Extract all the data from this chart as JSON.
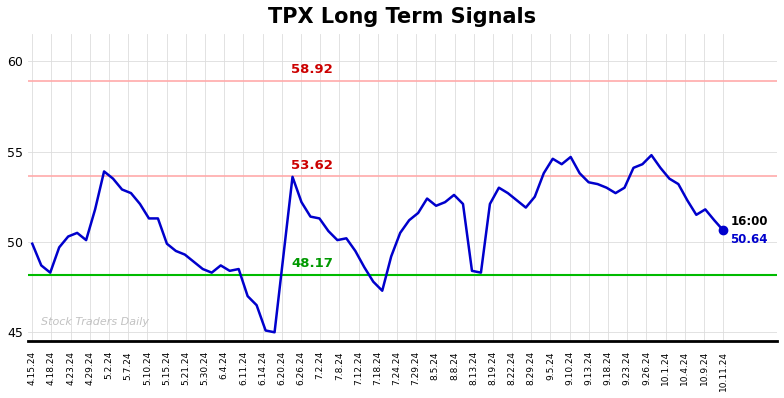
{
  "title": "TPX Long Term Signals",
  "title_fontsize": 15,
  "title_fontweight": "bold",
  "line_color": "#0000cc",
  "line_width": 1.8,
  "marker_color": "#0000cc",
  "hline_red1": 58.92,
  "hline_red2": 53.62,
  "hline_green": 48.17,
  "hline_red_color": "#ffaaaa",
  "hline_green_color": "#00bb00",
  "annotation_58_92": "58.92",
  "annotation_53_62": "53.62",
  "annotation_48_17": "48.17",
  "annotation_color_red": "#cc0000",
  "annotation_color_green": "#009900",
  "end_label_time": "16:00",
  "end_label_value": "50.64",
  "end_label_color_time": "#000000",
  "end_label_color_value": "#0000cc",
  "watermark": "Stock Traders Daily",
  "watermark_color": "#bbbbbb",
  "background_color": "#ffffff",
  "grid_color": "#dddddd",
  "ylim": [
    44.5,
    61.5
  ],
  "yticks": [
    45,
    50,
    55,
    60
  ],
  "x_labels": [
    "4.15.24",
    "4.18.24",
    "4.23.24",
    "4.29.24",
    "5.2.24",
    "5.7.24",
    "5.10.24",
    "5.15.24",
    "5.21.24",
    "5.30.24",
    "6.4.24",
    "6.11.24",
    "6.14.24",
    "6.20.24",
    "6.26.24",
    "7.2.24",
    "7.8.24",
    "7.12.24",
    "7.18.24",
    "7.24.24",
    "7.29.24",
    "8.5.24",
    "8.8.24",
    "8.13.24",
    "8.19.24",
    "8.22.24",
    "8.29.24",
    "9.5.24",
    "9.10.24",
    "9.13.24",
    "9.18.24",
    "9.23.24",
    "9.26.24",
    "10.1.24",
    "10.4.24",
    "10.9.24",
    "10.11.24"
  ],
  "y_values": [
    49.9,
    48.7,
    48.3,
    49.7,
    50.3,
    50.5,
    50.1,
    51.8,
    53.9,
    53.5,
    52.9,
    52.7,
    52.1,
    51.3,
    51.3,
    49.9,
    49.5,
    49.3,
    48.9,
    48.5,
    48.3,
    48.7,
    48.4,
    48.5,
    47.0,
    46.5,
    45.1,
    45.0,
    49.3,
    53.6,
    52.2,
    51.4,
    51.3,
    50.6,
    50.1,
    50.2,
    49.5,
    48.6,
    47.8,
    47.3,
    49.2,
    50.5,
    51.2,
    51.6,
    52.4,
    52.0,
    52.2,
    52.6,
    52.1,
    48.4,
    48.3,
    52.1,
    53.0,
    52.7,
    52.3,
    51.9,
    52.5,
    53.8,
    54.6,
    54.3,
    54.7,
    53.8,
    53.3,
    53.2,
    53.0,
    52.7,
    53.0,
    54.1,
    54.3,
    54.8,
    54.1,
    53.5,
    53.2,
    52.3,
    51.5,
    51.8,
    51.2,
    50.64
  ]
}
